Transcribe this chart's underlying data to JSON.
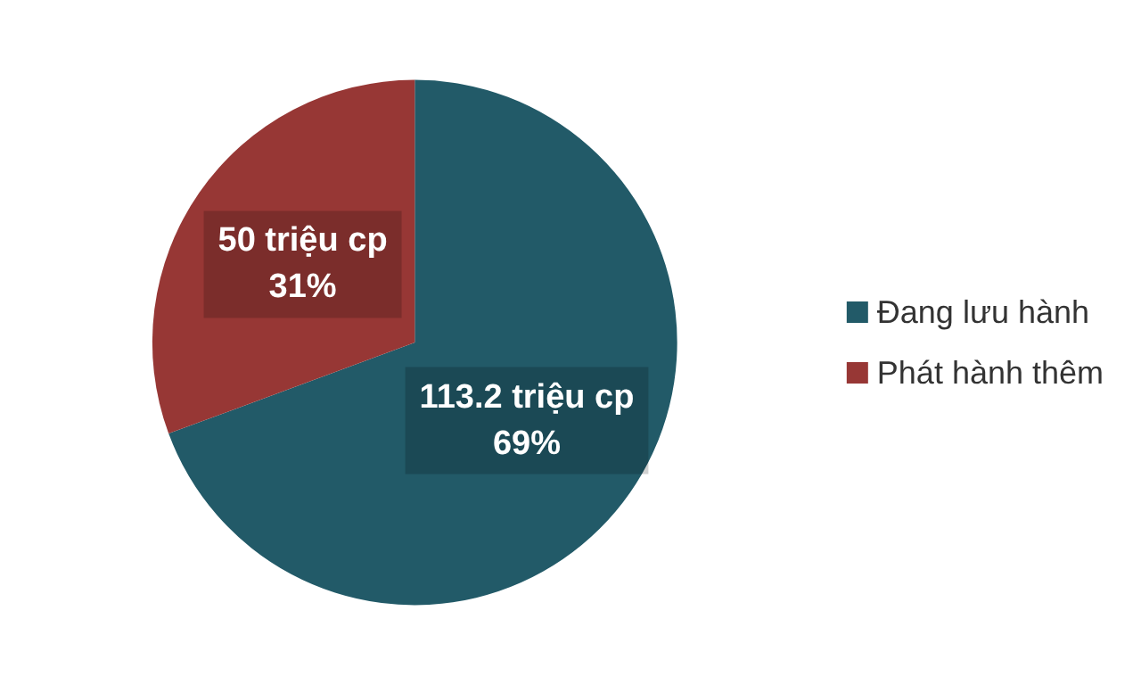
{
  "chart_data": {
    "type": "pie",
    "categories": [
      "Đang lưu hành",
      "Phát hành thêm"
    ],
    "values": [
      113.2,
      50
    ],
    "colors": [
      "#225a68",
      "#973735"
    ],
    "value_labels": [
      "113.2 triệu cp\n69%",
      "50 triệu cp\n31%"
    ],
    "legend": "right"
  }
}
